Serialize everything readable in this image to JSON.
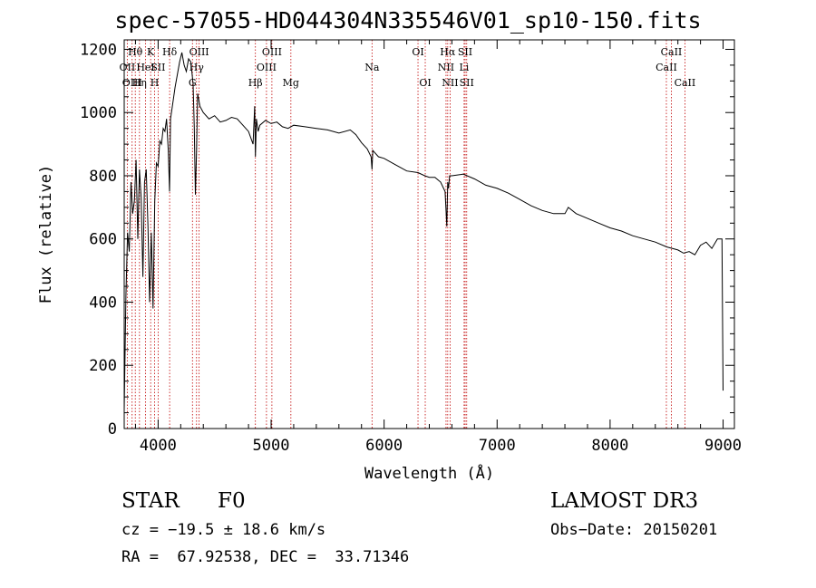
{
  "chart_data": {
    "type": "line",
    "title": "spec-57055-HD044304N335546V01_sp10-150.fits",
    "xlabel": "Wavelength (Å)",
    "ylabel": "Flux (relative)",
    "xlim": [
      3700,
      9100
    ],
    "ylim": [
      0,
      1230
    ],
    "xticks": [
      4000,
      5000,
      6000,
      7000,
      8000,
      9000
    ],
    "yticks": [
      0,
      200,
      400,
      600,
      800,
      1000,
      1200
    ],
    "grid": false,
    "series": [
      {
        "name": "spectrum",
        "x": [
          3700,
          3715,
          3730,
          3745,
          3760,
          3775,
          3790,
          3805,
          3820,
          3835,
          3850,
          3865,
          3880,
          3895,
          3910,
          3925,
          3940,
          3955,
          3970,
          3985,
          4000,
          4015,
          4030,
          4045,
          4060,
          4075,
          4090,
          4101,
          4110,
          4130,
          4150,
          4170,
          4190,
          4210,
          4230,
          4250,
          4270,
          4290,
          4310,
          4320,
          4330,
          4340,
          4350,
          4370,
          4400,
          4450,
          4500,
          4550,
          4600,
          4650,
          4700,
          4750,
          4800,
          4840,
          4855,
          4861,
          4870,
          4885,
          4900,
          4950,
          5000,
          5050,
          5100,
          5150,
          5200,
          5300,
          5400,
          5500,
          5600,
          5700,
          5750,
          5800,
          5850,
          5885,
          5893,
          5900,
          5950,
          6000,
          6100,
          6200,
          6300,
          6360,
          6400,
          6450,
          6500,
          6540,
          6555,
          6563,
          6570,
          6580,
          6600,
          6700,
          6800,
          6900,
          7000,
          7100,
          7200,
          7300,
          7400,
          7500,
          7600,
          7630,
          7700,
          7800,
          7900,
          8000,
          8100,
          8200,
          8300,
          8400,
          8500,
          8600,
          8650,
          8700,
          8750,
          8800,
          8850,
          8900,
          8950,
          8990,
          9000
        ],
        "y": [
          60,
          420,
          620,
          560,
          780,
          680,
          720,
          850,
          600,
          820,
          730,
          480,
          780,
          820,
          640,
          400,
          620,
          380,
          720,
          840,
          830,
          910,
          900,
          950,
          940,
          980,
          880,
          750,
          980,
          1030,
          1080,
          1120,
          1160,
          1190,
          1150,
          1130,
          1170,
          1160,
          1090,
          950,
          740,
          880,
          1060,
          1020,
          1000,
          980,
          990,
          970,
          975,
          985,
          980,
          960,
          940,
          900,
          1020,
          860,
          980,
          940,
          960,
          975,
          965,
          970,
          955,
          950,
          960,
          955,
          950,
          945,
          935,
          945,
          930,
          905,
          885,
          860,
          820,
          880,
          860,
          855,
          835,
          815,
          810,
          800,
          795,
          795,
          780,
          750,
          640,
          780,
          760,
          800,
          800,
          805,
          790,
          770,
          760,
          745,
          725,
          705,
          690,
          680,
          680,
          700,
          680,
          665,
          650,
          635,
          625,
          610,
          600,
          590,
          575,
          565,
          555,
          560,
          550,
          580,
          590,
          570,
          600,
          600,
          120
        ]
      }
    ],
    "line_markers": [
      {
        "label": "Hθ",
        "wavelength": 3798,
        "row": 1
      },
      {
        "label": "OII",
        "wavelength": 3727,
        "row": 2
      },
      {
        "label": "OIII",
        "wavelength": 3770,
        "row": 3
      },
      {
        "label": "Hη",
        "wavelength": 3835,
        "row": 3
      },
      {
        "label": "HeI",
        "wavelength": 3889,
        "row": 2
      },
      {
        "label": "K",
        "wavelength": 3934,
        "row": 1
      },
      {
        "label": "H",
        "wavelength": 3969,
        "row": 3
      },
      {
        "label": "SII",
        "wavelength": 4000,
        "row": 2
      },
      {
        "label": "Hδ",
        "wavelength": 4102,
        "row": 1
      },
      {
        "label": "OIII",
        "wavelength": 4363,
        "row": 1
      },
      {
        "label": "Hγ",
        "wavelength": 4340,
        "row": 2
      },
      {
        "label": "G",
        "wavelength": 4304,
        "row": 3
      },
      {
        "label": "Hβ",
        "wavelength": 4861,
        "row": 3
      },
      {
        "label": "OIII",
        "wavelength": 5007,
        "row": 1
      },
      {
        "label": "OIII",
        "wavelength": 4959,
        "row": 2
      },
      {
        "label": "Mg",
        "wavelength": 5175,
        "row": 3
      },
      {
        "label": "Na",
        "wavelength": 5893,
        "row": 2
      },
      {
        "label": "OI",
        "wavelength": 6300,
        "row": 1
      },
      {
        "label": "OI",
        "wavelength": 6364,
        "row": 3
      },
      {
        "label": "Hα",
        "wavelength": 6563,
        "row": 1
      },
      {
        "label": "SII",
        "wavelength": 6717,
        "row": 1
      },
      {
        "label": "NII",
        "wavelength": 6548,
        "row": 2
      },
      {
        "label": "Li",
        "wavelength": 6708,
        "row": 2
      },
      {
        "label": "NII",
        "wavelength": 6584,
        "row": 3
      },
      {
        "label": "SII",
        "wavelength": 6731,
        "row": 3
      },
      {
        "label": "CaII",
        "wavelength": 8542,
        "row": 1
      },
      {
        "label": "CaII",
        "wavelength": 8498,
        "row": 2
      },
      {
        "label": "CaII",
        "wavelength": 8662,
        "row": 3
      }
    ]
  },
  "info": {
    "class_label": "STAR",
    "subclass": "F0",
    "survey": "LAMOST DR3",
    "cz": "cz = −19.5 ± 18.6 km/s",
    "obs_date": "Obs−Date: 20150201",
    "ra_dec": "RA =  67.92538, DEC =  33.71346"
  },
  "colors": {
    "axis": "#000000",
    "spectrum": "#000000",
    "marker_line": "#c00000",
    "background": "#ffffff"
  }
}
